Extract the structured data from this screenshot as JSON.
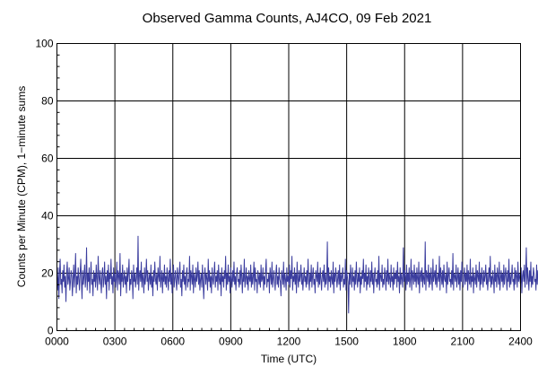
{
  "chart_data": {
    "type": "line",
    "title": "Observed Gamma Counts, AJ4CO, 09 Feb 2021",
    "xlabel": "Time (UTC)",
    "ylabel": "Counts per Minute (CPM), 1−minute sums",
    "x_ticks": [
      "0000",
      "0300",
      "0600",
      "0900",
      "1200",
      "1500",
      "1800",
      "2100",
      "2400"
    ],
    "y_ticks": [
      0,
      20,
      40,
      60,
      80,
      100
    ],
    "xlim_minutes": [
      0,
      1440
    ],
    "ylim": [
      0,
      100
    ],
    "grid": true,
    "series": [
      {
        "color": "#3b3d9e",
        "sampling_interval_minutes": 2,
        "values": [
          19,
          14,
          22,
          11,
          20,
          25,
          16,
          18,
          13,
          21,
          17,
          23,
          15,
          19,
          10,
          20,
          24,
          16,
          18,
          22,
          14,
          17,
          21,
          19,
          12,
          18,
          23,
          15,
          20,
          27,
          13,
          19,
          16,
          22,
          18,
          14,
          20,
          25,
          17,
          11,
          21,
          16,
          19,
          23,
          15,
          18,
          29,
          14,
          20,
          17,
          22,
          13,
          19,
          24,
          16,
          18,
          12,
          21,
          17,
          20,
          15,
          23,
          18,
          14,
          26,
          19,
          16,
          21,
          17,
          13,
          20,
          22,
          15,
          18,
          24,
          16,
          19,
          11,
          21,
          17,
          23,
          14,
          20,
          18,
          25,
          16,
          19,
          13,
          22,
          17,
          20,
          15,
          18,
          24,
          14,
          21,
          19,
          16,
          27,
          12,
          20,
          17,
          23,
          15,
          18,
          21,
          16,
          19,
          13,
          22,
          17,
          20,
          25,
          14,
          18,
          16,
          21,
          19,
          11,
          23,
          17,
          20,
          15,
          18,
          22,
          16,
          33,
          14,
          19,
          21,
          17,
          24,
          15,
          20,
          18,
          13,
          22,
          16,
          19,
          25,
          17,
          21,
          14,
          18,
          20,
          16,
          23,
          15,
          19,
          12,
          21,
          17,
          24,
          18,
          16,
          20,
          14,
          22,
          19,
          17,
          26,
          15,
          18,
          21,
          13,
          20,
          17,
          23,
          16,
          19,
          15,
          22,
          18,
          14,
          21,
          17,
          25,
          16,
          20,
          13,
          19,
          23,
          15,
          18,
          21,
          17,
          14,
          22,
          19,
          16,
          20,
          24,
          15,
          18,
          12,
          21,
          17,
          23,
          16,
          19,
          14,
          20,
          22,
          15,
          18,
          17,
          26,
          14,
          21,
          19,
          16,
          23,
          13,
          20,
          18,
          15,
          22,
          17,
          19,
          24,
          16,
          21,
          14,
          18,
          20,
          15,
          23,
          17,
          11,
          19,
          22,
          16,
          20,
          18,
          14,
          25,
          17,
          21,
          15,
          19,
          13,
          22,
          18,
          16,
          20,
          24,
          15,
          19,
          17,
          21,
          14,
          23,
          18,
          16,
          20,
          12,
          22,
          17,
          19,
          15,
          21,
          18,
          26,
          14,
          20,
          16,
          23,
          17,
          19,
          13,
          22,
          18,
          15,
          21,
          17,
          24,
          16,
          19,
          14,
          20,
          22,
          17,
          18,
          15,
          21,
          16,
          23,
          19,
          13,
          20,
          17,
          25,
          15,
          18,
          22,
          16,
          19,
          14,
          21,
          18,
          17,
          23,
          15,
          20,
          16,
          19,
          24,
          14,
          22,
          17,
          18,
          13,
          21,
          19,
          16,
          20,
          15,
          23,
          17,
          18,
          22,
          14,
          19,
          16,
          21,
          25,
          15,
          18,
          17,
          20,
          13,
          22,
          19,
          16,
          24,
          15,
          18,
          21,
          17,
          14,
          20,
          23,
          16,
          19,
          15,
          22,
          18,
          17,
          12,
          21,
          19,
          16,
          24,
          15,
          20,
          18,
          14,
          22,
          17,
          19,
          16,
          23,
          15,
          21,
          18,
          26,
          14,
          19,
          17,
          22,
          16,
          20,
          13,
          24,
          18,
          15,
          21,
          17,
          19,
          23,
          16,
          20,
          14,
          18,
          22,
          17,
          19,
          15,
          21,
          16,
          25,
          18,
          14,
          20,
          17,
          23,
          15,
          19,
          22,
          16,
          18,
          13,
          21,
          19,
          17,
          24,
          15,
          20,
          16,
          22,
          18,
          14,
          19,
          21,
          17,
          23,
          15,
          20,
          16,
          18,
          31,
          14,
          22,
          17,
          19,
          15,
          21,
          18,
          16,
          24,
          13,
          20,
          17,
          22,
          19,
          15,
          18,
          21,
          16,
          23,
          14,
          20,
          17,
          19,
          22,
          15,
          18,
          16,
          25,
          14,
          21,
          19,
          17,
          6,
          20,
          16,
          23,
          18,
          15,
          22,
          17,
          19,
          14,
          21,
          16,
          24,
          18,
          15,
          20,
          17,
          22,
          13,
          19,
          16,
          21,
          18,
          25,
          15,
          20,
          17,
          23,
          14,
          19,
          16,
          22,
          18,
          15,
          21,
          17,
          24,
          16,
          20,
          13,
          19,
          22,
          17,
          18,
          15,
          21,
          16,
          26,
          14,
          20,
          19,
          17,
          23,
          15,
          18,
          16,
          22,
          19,
          14,
          21,
          17,
          25,
          16,
          20,
          18,
          15,
          23,
          17,
          19,
          14,
          22,
          16,
          20,
          18,
          21,
          15,
          24,
          17,
          19,
          13,
          22,
          16,
          20,
          18,
          15,
          29,
          17,
          21,
          19,
          14,
          23,
          16,
          20,
          17,
          22,
          15,
          18,
          25,
          14,
          21,
          19,
          16,
          23,
          17,
          20,
          15,
          22,
          18,
          16,
          24,
          13,
          19,
          21,
          17,
          22,
          15,
          20,
          18,
          16,
          31,
          14,
          21,
          19,
          17,
          23,
          15,
          20,
          16,
          22,
          18,
          14,
          25,
          17,
          19,
          21,
          16,
          23,
          15,
          18,
          20,
          17,
          26,
          14,
          22,
          19,
          16,
          21,
          15,
          23,
          18,
          17,
          20,
          13,
          24,
          16,
          19,
          22,
          17,
          18,
          15,
          21,
          16,
          27,
          14,
          20,
          19,
          17,
          23,
          15,
          18,
          22,
          16,
          20,
          14,
          21,
          17,
          24,
          18,
          15,
          19,
          22,
          16,
          20,
          17,
          23,
          14,
          21,
          18,
          16,
          25,
          15,
          19,
          17,
          22,
          13,
          20,
          18,
          16,
          23,
          15,
          21,
          19,
          17,
          24,
          14,
          20,
          16,
          22,
          18,
          15,
          21,
          17,
          19,
          23,
          16,
          20,
          14,
          18,
          22,
          17,
          26,
          15,
          19,
          16,
          21,
          18,
          13,
          23,
          17,
          20,
          15,
          22,
          19,
          16,
          24,
          14,
          18,
          21,
          17,
          20,
          15,
          23,
          16,
          19,
          22,
          18,
          14,
          21,
          17,
          25,
          15,
          20,
          16,
          19,
          23,
          17,
          18,
          14,
          22,
          16,
          21,
          19,
          15,
          24,
          17,
          20,
          18,
          16,
          22,
          13,
          19,
          21,
          17,
          23,
          15,
          20,
          29,
          16,
          22,
          18,
          14,
          21,
          17,
          24,
          15,
          19,
          16,
          22,
          20,
          17,
          18,
          14,
          23,
          16,
          21,
          19,
          15,
          25,
          17,
          20,
          16,
          22,
          18,
          13,
          21,
          19,
          17,
          24,
          15,
          20,
          16,
          23,
          18,
          14,
          22,
          17,
          19,
          21,
          15,
          26,
          16,
          20,
          18,
          17,
          23,
          14,
          21,
          19,
          16,
          22,
          15,
          24,
          17,
          20,
          18,
          13,
          21,
          16,
          23,
          19,
          17,
          20,
          15,
          25,
          14,
          22,
          18,
          16,
          21,
          17,
          23,
          15,
          19,
          20,
          16,
          28,
          14,
          22,
          17,
          18,
          21,
          15,
          23,
          16,
          19,
          13,
          22,
          17,
          20,
          18,
          24,
          15,
          21,
          16,
          19,
          22,
          17,
          14,
          23,
          18,
          20,
          16,
          21,
          15,
          25,
          17,
          19,
          22,
          16,
          18,
          14,
          21,
          17,
          23,
          15,
          20,
          19,
          16,
          22,
          13,
          24,
          18,
          17,
          21,
          15,
          20,
          16,
          23,
          19,
          14,
          22,
          17,
          18,
          25,
          15,
          21,
          16,
          20,
          23,
          17,
          19,
          14,
          22,
          18,
          16,
          21,
          15,
          24
        ]
      }
    ]
  }
}
